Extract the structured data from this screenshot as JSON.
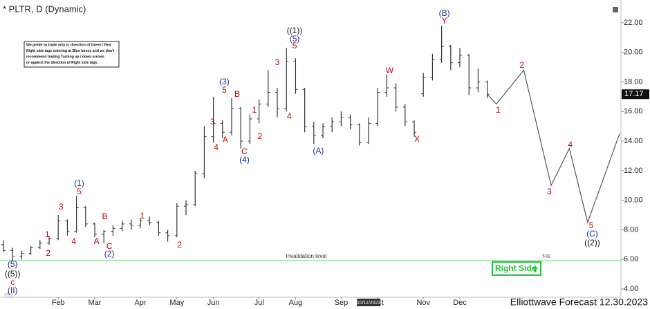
{
  "chart_data": {
    "type": "ohlc",
    "title": "* PLTR, D (Dynamic)",
    "footer": "Elliottwave Forecast 12.30.2023",
    "note": [
      "We prefer to trade only in direction of Green / Red",
      "Right side tags entering at Blue boxes and we don't",
      "recommend trading Turning up / down arrows",
      "or against the direction of Right side tags."
    ],
    "right_side_tag": "Right Side",
    "year_label": "2023",
    "cursor_date": "10/11/2023",
    "categories": [
      null,
      null,
      null,
      null,
      null,
      null,
      "Feb",
      null,
      null,
      null,
      "Mar",
      null,
      null,
      null,
      null,
      "Apr",
      null,
      null,
      null,
      "May",
      null,
      null,
      null,
      "Jun",
      null,
      null,
      null,
      null,
      "Jul",
      null,
      null,
      null,
      "Aug",
      null,
      null,
      null,
      null,
      "Sep",
      null,
      null,
      null,
      "Oct",
      null,
      null,
      null,
      null,
      "Nov",
      null,
      null,
      null,
      "Dec",
      null,
      null,
      null
    ],
    "open": [
      7.0,
      6.6,
      6.2,
      6.4,
      6.8,
      7.1,
      7.4,
      8.6,
      7.9,
      9.5,
      8.4,
      7.7,
      7.9,
      8.1,
      8.4,
      8.3,
      8.6,
      8.5,
      7.8,
      7.6,
      9.6,
      9.7,
      11.8,
      14.3,
      15.2,
      14.6,
      16.2,
      14.0,
      15.5,
      16.5,
      17.3,
      16.2,
      19.4,
      17.5,
      15.0,
      14.4,
      15.0,
      15.3,
      15.6,
      15.1,
      13.9,
      15.2,
      17.3,
      17.6,
      16.3,
      15.3,
      17.2,
      18.3,
      19.5,
      20.4,
      19.3,
      19.8,
      17.6,
      18.0
    ],
    "high": [
      7.3,
      6.8,
      6.6,
      6.9,
      7.3,
      7.6,
      9.0,
      8.7,
      10.3,
      9.6,
      8.5,
      8.0,
      8.3,
      8.6,
      8.7,
      8.8,
      8.9,
      8.6,
      8.0,
      9.8,
      10.0,
      12.0,
      15.0,
      17.0,
      15.4,
      16.9,
      16.3,
      15.8,
      16.8,
      18.8,
      17.6,
      20.3,
      19.6,
      17.6,
      15.3,
      15.2,
      15.6,
      16.0,
      15.8,
      15.2,
      15.6,
      17.6,
      18.5,
      17.9,
      16.5,
      15.4,
      18.6,
      19.9,
      21.8,
      20.5,
      20.3,
      19.9,
      18.9,
      18.1
    ],
    "low": [
      6.5,
      5.92,
      6.0,
      6.3,
      6.7,
      7.0,
      7.3,
      7.6,
      7.8,
      8.2,
      7.5,
      7.1,
      7.6,
      7.9,
      8.0,
      8.1,
      8.3,
      7.6,
      7.2,
      7.5,
      9.0,
      9.6,
      11.5,
      13.9,
      14.2,
      14.4,
      13.5,
      13.8,
      15.2,
      16.3,
      15.6,
      16.0,
      17.2,
      14.6,
      13.8,
      14.2,
      14.6,
      15.0,
      14.8,
      13.7,
      13.8,
      15.0,
      17.0,
      16.0,
      15.0,
      14.3,
      17.0,
      18.1,
      19.3,
      18.8,
      19.0,
      17.1,
      17.3,
      16.9
    ],
    "close": [
      6.6,
      6.2,
      6.4,
      6.8,
      7.1,
      7.4,
      8.6,
      7.9,
      9.5,
      8.4,
      7.7,
      7.9,
      8.1,
      8.4,
      8.3,
      8.6,
      8.5,
      7.8,
      7.6,
      9.6,
      9.7,
      11.8,
      14.3,
      15.2,
      14.6,
      16.2,
      14.0,
      15.5,
      16.5,
      17.3,
      16.2,
      19.4,
      17.5,
      15.0,
      14.4,
      15.0,
      15.3,
      15.6,
      15.1,
      13.9,
      15.2,
      17.3,
      17.6,
      16.3,
      15.3,
      14.6,
      18.3,
      19.5,
      20.4,
      19.3,
      19.8,
      17.6,
      18.0,
      17.17
    ],
    "color": "#333333",
    "last_price": 17.17,
    "projection": {
      "x": [
        54,
        57,
        60,
        62,
        64,
        67.5
      ],
      "values": [
        16.5,
        18.8,
        11.0,
        13.5,
        8.5,
        14.5
      ],
      "color": "#555555"
    },
    "invalidation": {
      "label": "Invalidation level",
      "value": 5.92,
      "color": "#7fd88a"
    },
    "annotations": [
      {
        "text": "(5)",
        "x": 1.0,
        "y": 5.64,
        "color": "#1a2a9a"
      },
      {
        "text": "((5))",
        "x": 1.0,
        "y": 4.98,
        "color": "#111111"
      },
      {
        "text": "c",
        "x": 1.0,
        "y": 4.42,
        "color": "#c00000"
      },
      {
        "text": "(II)",
        "x": 1.0,
        "y": 3.86,
        "color": "#1a2a9a"
      },
      {
        "text": "1",
        "x": 4.8,
        "y": 7.65,
        "color": "#c00000"
      },
      {
        "text": "2",
        "x": 4.9,
        "y": 6.39,
        "color": "#c00000"
      },
      {
        "text": "3",
        "x": 6.3,
        "y": 9.52,
        "color": "#c00000"
      },
      {
        "text": "4",
        "x": 7.7,
        "y": 7.18,
        "color": "#c00000"
      },
      {
        "text": "(1)",
        "x": 8.3,
        "y": 11.11,
        "color": "#1a2a9a"
      },
      {
        "text": "5",
        "x": 8.3,
        "y": 10.55,
        "color": "#c00000"
      },
      {
        "text": "A",
        "x": 10.2,
        "y": 7.18,
        "color": "#c00000"
      },
      {
        "text": "B",
        "x": 11.1,
        "y": 8.86,
        "color": "#c00000"
      },
      {
        "text": "C",
        "x": 11.6,
        "y": 6.85,
        "color": "#c00000"
      },
      {
        "text": "(2)",
        "x": 11.6,
        "y": 6.34,
        "color": "#1a2a9a"
      },
      {
        "text": "1",
        "x": 15.2,
        "y": 8.91,
        "color": "#c00000"
      },
      {
        "text": "2",
        "x": 19.3,
        "y": 6.95,
        "color": "#c00000"
      },
      {
        "text": "3",
        "x": 22.9,
        "y": 15.27,
        "color": "#c00000"
      },
      {
        "text": "4",
        "x": 23.3,
        "y": 13.54,
        "color": "#c00000"
      },
      {
        "text": "(3)",
        "x": 24.2,
        "y": 17.98,
        "color": "#1a2a9a"
      },
      {
        "text": "5",
        "x": 24.2,
        "y": 17.42,
        "color": "#c00000"
      },
      {
        "text": "A",
        "x": 24.3,
        "y": 14.05,
        "color": "#c00000"
      },
      {
        "text": "B",
        "x": 25.6,
        "y": 17.14,
        "color": "#c00000"
      },
      {
        "text": "C",
        "x": 26.4,
        "y": 13.26,
        "color": "#c00000"
      },
      {
        "text": "(4)",
        "x": 26.4,
        "y": 12.7,
        "color": "#1a2a9a"
      },
      {
        "text": "1",
        "x": 27.5,
        "y": 16.06,
        "color": "#c00000"
      },
      {
        "text": "2",
        "x": 28.1,
        "y": 14.29,
        "color": "#c00000"
      },
      {
        "text": "3",
        "x": 30.0,
        "y": 19.29,
        "color": "#c00000"
      },
      {
        "text": "4",
        "x": 31.3,
        "y": 15.64,
        "color": "#c00000"
      },
      {
        "text": "((1))",
        "x": 31.9,
        "y": 21.44,
        "color": "#111111"
      },
      {
        "text": "(5)",
        "x": 31.9,
        "y": 20.88,
        "color": "#1a2a9a"
      },
      {
        "text": "5",
        "x": 31.9,
        "y": 20.41,
        "color": "#c00000"
      },
      {
        "text": "(A)",
        "x": 34.5,
        "y": 13.3,
        "color": "#1a2a9a"
      },
      {
        "text": "W",
        "x": 42.3,
        "y": 18.73,
        "color": "#c00000"
      },
      {
        "text": "X",
        "x": 45.3,
        "y": 14.1,
        "color": "#c00000"
      },
      {
        "text": "(B)",
        "x": 48.3,
        "y": 22.61,
        "color": "#1a2a9a"
      },
      {
        "text": "Y",
        "x": 48.3,
        "y": 22.09,
        "color": "#c00000"
      },
      {
        "text": "1",
        "x": 54.2,
        "y": 16.06,
        "color": "#c00000"
      },
      {
        "text": "2",
        "x": 56.8,
        "y": 19.1,
        "color": "#c00000"
      },
      {
        "text": "3",
        "x": 59.8,
        "y": 10.55,
        "color": "#c00000"
      },
      {
        "text": "4",
        "x": 62.1,
        "y": 13.73,
        "color": "#c00000"
      },
      {
        "text": "5",
        "x": 64.4,
        "y": 8.26,
        "color": "#c00000"
      },
      {
        "text": "(C)",
        "x": 64.5,
        "y": 7.7,
        "color": "#1a2a9a"
      },
      {
        "text": "((2))",
        "x": 64.5,
        "y": 7.09,
        "color": "#111111"
      }
    ],
    "xlim": [
      -0.38,
      67.65
    ],
    "ylim": [
      3.44,
      23.54
    ],
    "yticks": [
      {
        "value": 4,
        "label": "4.00"
      },
      {
        "value": 6,
        "label": "6.00"
      },
      {
        "value": 8,
        "label": "8.00"
      },
      {
        "value": 10,
        "label": "10.00"
      },
      {
        "value": 12,
        "label": "12.00"
      },
      {
        "value": 14,
        "label": "14.00"
      },
      {
        "value": 16,
        "label": "16.00"
      },
      {
        "value": 18,
        "label": "18.00"
      },
      {
        "value": 20,
        "label": "20.00"
      },
      {
        "value": 22,
        "label": "22.00"
      }
    ]
  }
}
